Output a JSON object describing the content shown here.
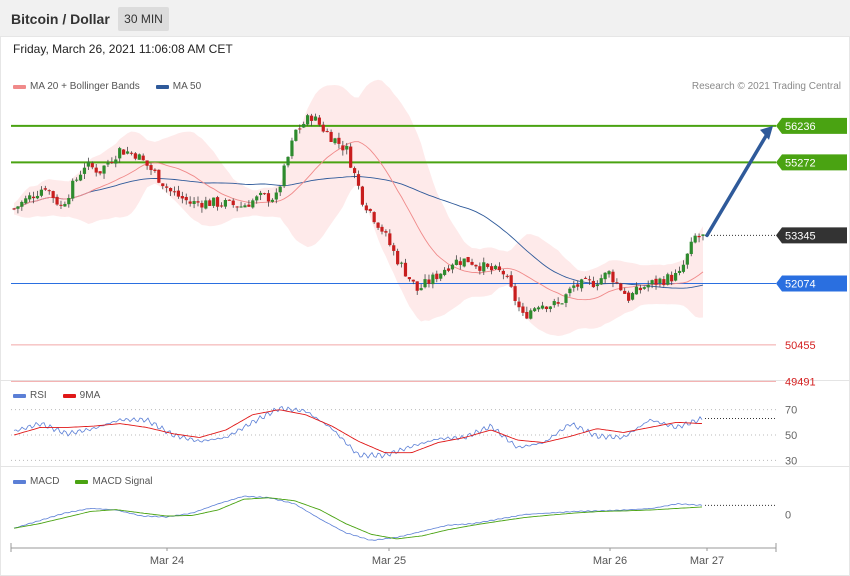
{
  "header": {
    "title": "Bitcoin / Dollar",
    "timeframe": "30 MIN"
  },
  "datetime": "Friday, March 26, 2021 11:06:08 AM CET",
  "legend": {
    "price": [
      {
        "label": "MA 20 + Bollinger Bands",
        "color": "#f08a8a"
      },
      {
        "label": "MA 50",
        "color": "#2f5a9a"
      }
    ],
    "rsi": [
      {
        "label": "RSI",
        "color": "#5b7fd6"
      },
      {
        "label": "9MA",
        "color": "#e01818"
      }
    ],
    "macd": [
      {
        "label": "MACD",
        "color": "#5b7fd6"
      },
      {
        "label": "MACD Signal",
        "color": "#4aa312"
      }
    ]
  },
  "credit": "Research © 2021 Trading Central",
  "chart_data": [
    {
      "type": "candlestick",
      "panel": "price",
      "ylim": [
        49000,
        58000
      ],
      "levels": [
        {
          "value": 56236,
          "label": "56236",
          "kind": "resistance",
          "color": "#4aa312"
        },
        {
          "value": 55272,
          "label": "55272",
          "kind": "resistance",
          "color": "#4aa312"
        },
        {
          "value": 53345,
          "label": "53345",
          "kind": "last-price",
          "color": "#333333"
        },
        {
          "value": 52074,
          "label": "52074",
          "kind": "pivot",
          "color": "#2a6fe0"
        },
        {
          "value": 50455,
          "label": "50455",
          "kind": "support",
          "color": "#d42020"
        },
        {
          "value": 49491,
          "label": "49491",
          "kind": "support",
          "color": "#d42020"
        }
      ],
      "projection": {
        "from": 53345,
        "to": 56236
      },
      "path": [
        [
          0,
          54050
        ],
        [
          8,
          54650
        ],
        [
          12,
          54100
        ],
        [
          18,
          55200
        ],
        [
          22,
          55050
        ],
        [
          27,
          55600
        ],
        [
          31,
          55500
        ],
        [
          36,
          54980
        ],
        [
          40,
          54500
        ],
        [
          45,
          54200
        ],
        [
          49,
          54220
        ],
        [
          54,
          54180
        ],
        [
          58,
          54120
        ],
        [
          63,
          54350
        ],
        [
          67,
          54350
        ],
        [
          72,
          56100
        ],
        [
          76,
          56500
        ],
        [
          80,
          56050
        ],
        [
          85,
          55600
        ],
        [
          89,
          54300
        ],
        [
          94,
          53500
        ],
        [
          98,
          52700
        ],
        [
          103,
          51900
        ],
        [
          107,
          52200
        ],
        [
          112,
          52650
        ],
        [
          116,
          52700
        ],
        [
          121,
          52450
        ],
        [
          125,
          52350
        ],
        [
          130,
          51200
        ],
        [
          134,
          51550
        ],
        [
          139,
          51500
        ],
        [
          143,
          52000
        ],
        [
          148,
          52100
        ],
        [
          152,
          52350
        ],
        [
          157,
          51700
        ],
        [
          161,
          52000
        ],
        [
          165,
          52150
        ],
        [
          170,
          52300
        ],
        [
          174,
          53300
        ],
        [
          176,
          53300
        ]
      ],
      "indicators": [
        "MA 20 + Bollinger Bands",
        "MA 50"
      ]
    },
    {
      "type": "line",
      "panel": "RSI",
      "ticks": [
        70,
        50,
        30
      ],
      "ylim": [
        20,
        80
      ],
      "series": [
        {
          "name": "RSI",
          "values": [
            53,
            59,
            51,
            55,
            62,
            62,
            50,
            45,
            48,
            60,
            71,
            69,
            55,
            34,
            34,
            41,
            47,
            48,
            57,
            40,
            44,
            59,
            49,
            48,
            62,
            56,
            63
          ]
        },
        {
          "name": "9MA",
          "values": [
            50,
            56,
            56,
            57,
            59,
            56,
            51,
            48,
            54,
            66,
            70,
            66,
            57,
            45,
            36,
            36,
            44,
            48,
            54,
            46,
            44,
            49,
            55,
            52,
            56,
            60,
            59
          ]
        }
      ]
    },
    {
      "type": "line",
      "panel": "MACD",
      "ticks": [
        0
      ],
      "ylim": [
        -1,
        1
      ],
      "series": [
        {
          "name": "MACD",
          "values": [
            -0.45,
            -0.2,
            0.05,
            0.2,
            0.15,
            -0.05,
            -0.08,
            0.05,
            0.35,
            0.6,
            0.55,
            0.35,
            -0.15,
            -0.6,
            -0.85,
            -0.75,
            -0.55,
            -0.35,
            -0.3,
            -0.15,
            0.0,
            0.05,
            0.1,
            0.12,
            0.15,
            0.2,
            0.35,
            0.3
          ]
        },
        {
          "name": "MACD Signal",
          "values": [
            -0.45,
            -0.3,
            -0.1,
            0.1,
            0.16,
            0.05,
            -0.05,
            -0.03,
            0.15,
            0.5,
            0.55,
            0.45,
            0.15,
            -0.3,
            -0.65,
            -0.8,
            -0.7,
            -0.5,
            -0.35,
            -0.22,
            -0.1,
            -0.02,
            0.05,
            0.1,
            0.12,
            0.15,
            0.2,
            0.25
          ]
        }
      ]
    }
  ],
  "x_axis": {
    "ticks": [
      "Mar 24",
      "Mar 25",
      "Mar 26",
      "Mar 27"
    ]
  }
}
